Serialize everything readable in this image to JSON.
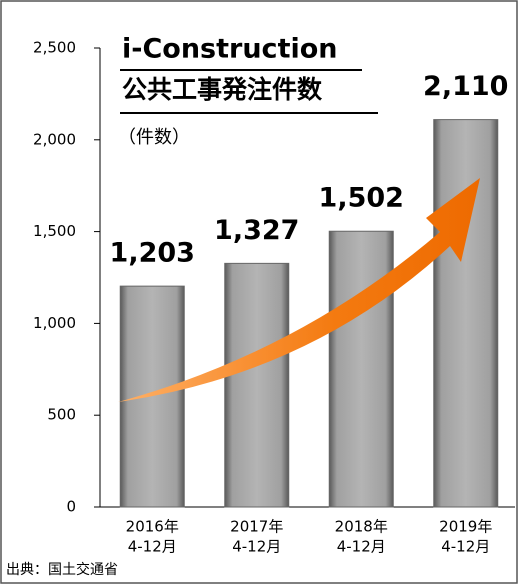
{
  "chart_data": {
    "type": "bar",
    "title": [
      "i-Construction",
      "公共工事発注件数"
    ],
    "subtitle": "（件数）",
    "source": "出典：国土交通省",
    "categories": [
      [
        "2016年",
        "4-12月"
      ],
      [
        "2017年",
        "4-12月"
      ],
      [
        "2018年",
        "4-12月"
      ],
      [
        "2019年",
        "4-12月"
      ]
    ],
    "values": [
      1203,
      1327,
      1502,
      2110
    ],
    "value_labels": [
      "1,203",
      "1,327",
      "1,502",
      "2,110"
    ],
    "color": "#a6a6a6",
    "ylim": [
      0,
      2500
    ],
    "yticks": [
      0,
      500,
      {
        "value": 1000,
        "label": "1,000"
      },
      {
        "value": 1500,
        "label": "1,500"
      },
      {
        "value": 2000,
        "label": "2,000"
      },
      {
        "value": 2500,
        "label": "2,500"
      }
    ],
    "grid": false
  }
}
